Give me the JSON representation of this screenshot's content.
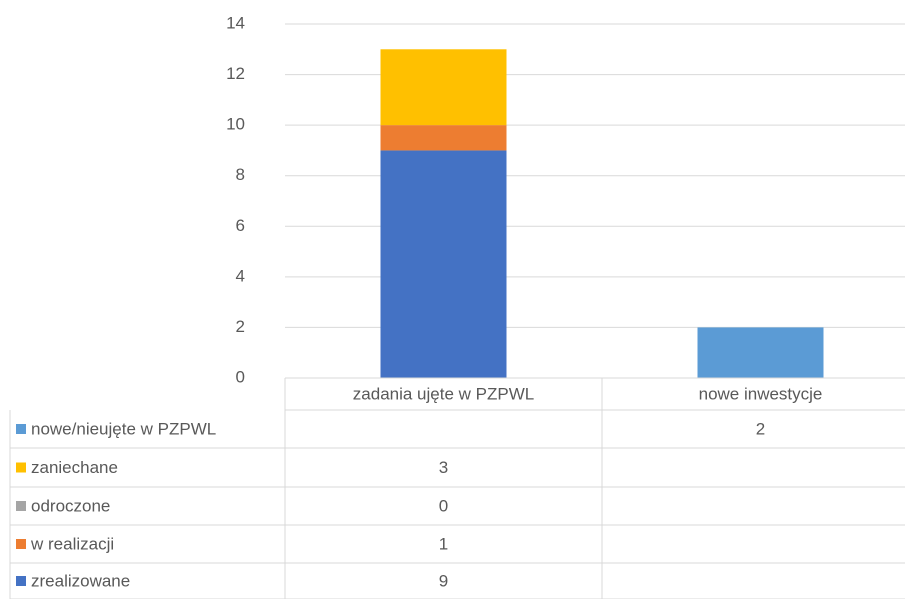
{
  "chart_data": {
    "type": "stacked_bar",
    "categories": [
      "zadania ujęte w PZPWL",
      "nowe inwestycje"
    ],
    "series": [
      {
        "name": "zrealizowane",
        "color": "#4472c4",
        "values": [
          9,
          null
        ]
      },
      {
        "name": "w realizacji",
        "color": "#ed7d31",
        "values": [
          1,
          null
        ]
      },
      {
        "name": "odroczone",
        "color": "#a5a5a5",
        "values": [
          0,
          null
        ]
      },
      {
        "name": "zaniechane",
        "color": "#ffc000",
        "values": [
          3,
          null
        ]
      },
      {
        "name": "nowe/nieujęte w PZPWL",
        "color": "#5b9bd5",
        "values": [
          null,
          2
        ]
      }
    ],
    "ylim": [
      0,
      14
    ],
    "yticks": [
      0,
      2,
      4,
      6,
      8,
      10,
      12,
      14
    ],
    "grid": true,
    "data_table": true
  }
}
